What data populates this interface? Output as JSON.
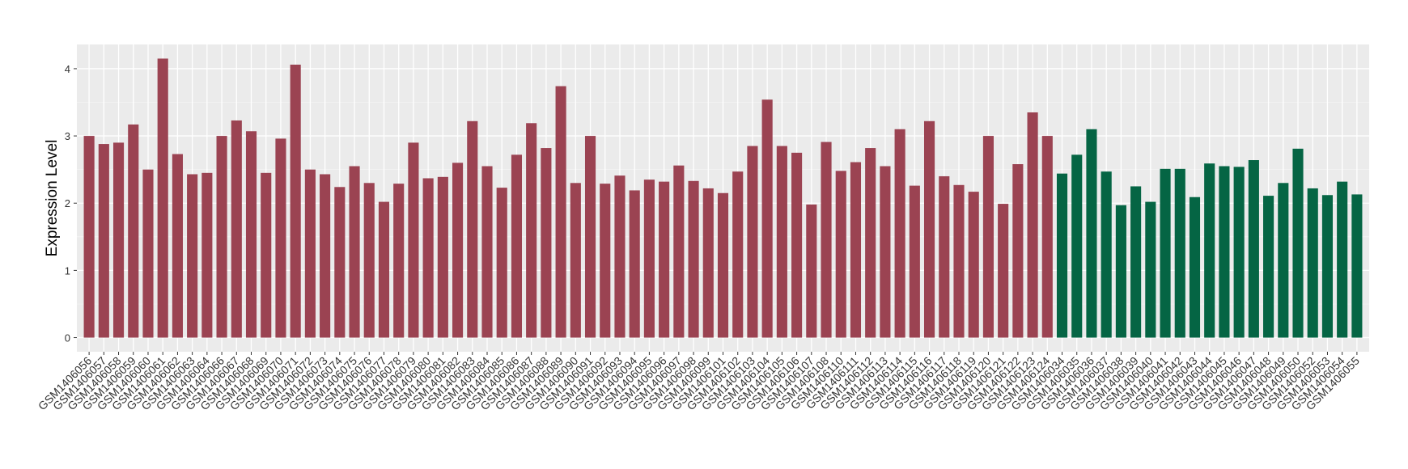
{
  "chart_data": {
    "type": "bar",
    "y_label": "Expression Level",
    "categories": [
      "GSM1406056",
      "GSM1406057",
      "GSM1406058",
      "GSM1406059",
      "GSM1406060",
      "GSM1406061",
      "GSM1406062",
      "GSM1406063",
      "GSM1406064",
      "GSM1406066",
      "GSM1406067",
      "GSM1406068",
      "GSM1406069",
      "GSM1406070",
      "GSM1406071",
      "GSM1406072",
      "GSM1406073",
      "GSM1406074",
      "GSM1406075",
      "GSM1406076",
      "GSM1406077",
      "GSM1406078",
      "GSM1406079",
      "GSM1406080",
      "GSM1406081",
      "GSM1406082",
      "GSM1406083",
      "GSM1406084",
      "GSM1406085",
      "GSM1406086",
      "GSM1406087",
      "GSM1406088",
      "GSM1406089",
      "GSM1406090",
      "GSM1406091",
      "GSM1406092",
      "GSM1406093",
      "GSM1406094",
      "GSM1406095",
      "GSM1406096",
      "GSM1406097",
      "GSM1406098",
      "GSM1406099",
      "GSM1406101",
      "GSM1406102",
      "GSM1406103",
      "GSM1406104",
      "GSM1406105",
      "GSM1406106",
      "GSM1406107",
      "GSM1406108",
      "GSM1406110",
      "GSM1406111",
      "GSM1406112",
      "GSM1406113",
      "GSM1406114",
      "GSM1406115",
      "GSM1406116",
      "GSM1406117",
      "GSM1406118",
      "GSM1406119",
      "GSM1406120",
      "GSM1406121",
      "GSM1406122",
      "GSM1406123",
      "GSM1406124",
      "GSM1406034",
      "GSM1406035",
      "GSM1406036",
      "GSM1406037",
      "GSM1406038",
      "GSM1406039",
      "GSM1406040",
      "GSM1406041",
      "GSM1406042",
      "GSM1406043",
      "GSM1406044",
      "GSM1406045",
      "GSM1406046",
      "GSM1406047",
      "GSM1406048",
      "GSM1406049",
      "GSM1406050",
      "GSM1406052",
      "GSM1406053",
      "GSM1406054",
      "GSM1406055"
    ],
    "values": [
      3.0,
      2.88,
      2.9,
      3.17,
      2.5,
      4.15,
      2.73,
      2.43,
      2.45,
      3.0,
      3.23,
      3.07,
      2.45,
      2.96,
      4.06,
      2.5,
      2.43,
      2.24,
      2.55,
      2.3,
      2.02,
      2.29,
      2.9,
      2.37,
      2.39,
      2.6,
      3.22,
      2.55,
      2.23,
      2.72,
      3.19,
      2.82,
      3.74,
      2.3,
      3.0,
      2.29,
      2.41,
      2.19,
      2.35,
      2.32,
      2.56,
      2.33,
      2.22,
      2.15,
      2.47,
      2.85,
      3.54,
      2.85,
      2.75,
      1.98,
      2.91,
      2.48,
      2.61,
      2.82,
      2.55,
      3.1,
      2.26,
      3.22,
      2.4,
      2.27,
      2.17,
      3.0,
      1.99,
      2.58,
      3.35,
      3.0,
      2.44,
      2.72,
      3.1,
      2.47,
      1.97,
      2.25,
      2.02,
      2.51,
      2.51,
      2.09,
      2.59,
      2.55,
      2.54,
      2.64,
      2.11,
      2.3,
      2.81,
      2.22,
      2.12,
      2.32,
      2.13
    ],
    "group_colors": {
      "count_first": 66,
      "first": "#9b4352",
      "second": "#056544"
    },
    "ylim": [
      -0.21,
      4.36
    ],
    "yticks": [
      0,
      1,
      2,
      3,
      4
    ],
    "grid": true
  }
}
